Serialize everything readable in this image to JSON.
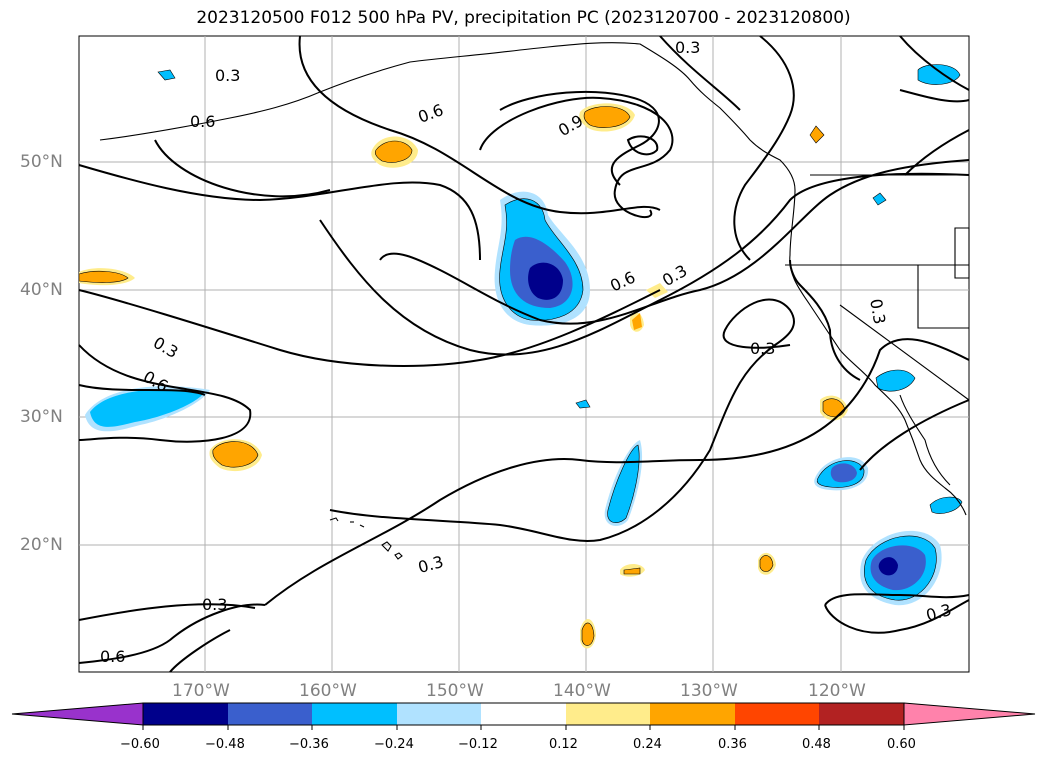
{
  "title": "2023120500 F012 500 hPa PV, precipitation PC (2023120700 - 2023120800)",
  "lat_labels": [
    "50°N",
    "40°N",
    "30°N",
    "20°N"
  ],
  "lon_labels": [
    "170°W",
    "160°W",
    "150°W",
    "140°W",
    "130°W",
    "120°W"
  ],
  "contour_labels": [
    "0.3",
    "0.6",
    "0.6",
    "0.9",
    "0.6",
    "0.3",
    "0.3",
    "0.3",
    "0.6",
    "0.3",
    "0.3",
    "0.3",
    "0.3",
    "0.6",
    "0.3"
  ],
  "colorbar": {
    "ticks": [
      "−0.60",
      "−0.48",
      "−0.36",
      "−0.24",
      "−0.12",
      "0.12",
      "0.24",
      "0.36",
      "0.48",
      "0.60"
    ],
    "colors": [
      "#9932CC",
      "#00008B",
      "#3A5FCD",
      "#00BFFF",
      "#B0E2FF",
      "#FFFFFF",
      "#FFEC8B",
      "#FFA500",
      "#FF4500",
      "#B22222",
      "#FF82AB"
    ]
  }
}
